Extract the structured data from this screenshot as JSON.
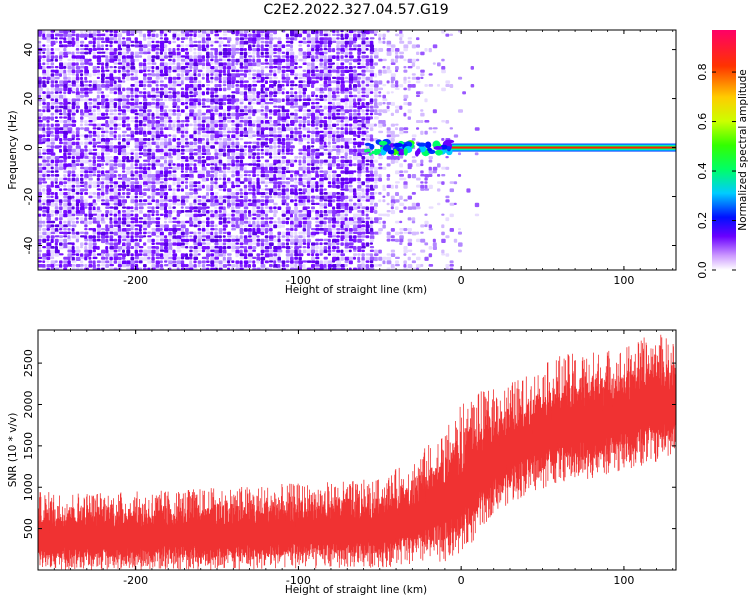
{
  "page": {
    "title": "C2E2.2022.327.04.57.G19"
  },
  "chart_data": [
    {
      "type": "heatmap",
      "xlabel": "Height of straight line (km)",
      "ylabel": "Frequency (Hz)",
      "xlim": [
        -260,
        132
      ],
      "ylim": [
        -50,
        48
      ],
      "xticks": [
        -200,
        -100,
        0,
        100
      ],
      "xtick_labels": [
        "-200",
        "-100",
        "0",
        "100"
      ],
      "yticks": [
        40,
        20,
        0,
        -20,
        -40
      ],
      "ytick_labels": [
        "40",
        "20",
        "0",
        "-20",
        "-40"
      ],
      "colorbar": {
        "label": "Normalized spectral amplitude",
        "range": [
          0,
          0.97
        ],
        "ticks": [
          0.0,
          0.2,
          0.4,
          0.6,
          0.8
        ],
        "tick_labels": [
          "0.0",
          "0.2",
          "0.4",
          "0.6",
          "0.8"
        ],
        "colormap": "rainbow-white-to-violet-to-red"
      },
      "features": {
        "noise_region_x": [
          -260,
          -55
        ],
        "fading_noise_x": [
          -55,
          5
        ],
        "signal_line_frequency": 0,
        "signal_line_x": [
          -60,
          132
        ],
        "signal_amplitude": 0.8
      },
      "grid": false
    },
    {
      "type": "line",
      "xlabel": "Height of straight line (km)",
      "ylabel": "SNR (10 * v/v)",
      "xlim": [
        -260,
        132
      ],
      "ylim": [
        0,
        2900
      ],
      "xticks": [
        -200,
        -100,
        0,
        100
      ],
      "xtick_labels": [
        "-200",
        "-100",
        "0",
        "100"
      ],
      "yticks": [
        500,
        1000,
        1500,
        2000,
        2500
      ],
      "ytick_labels": [
        "500",
        "1000",
        "1500",
        "2000",
        "2500"
      ],
      "line_color": "#f03232",
      "envelope": {
        "x": [
          -260,
          -200,
          -150,
          -100,
          -50,
          -30,
          -10,
          0,
          10,
          20,
          40,
          60,
          80,
          100,
          120,
          132
        ],
        "lower": [
          0,
          0,
          0,
          10,
          30,
          50,
          100,
          150,
          400,
          700,
          900,
          1050,
          1100,
          1200,
          1300,
          1400
        ],
        "upper": [
          950,
          950,
          1000,
          1050,
          1100,
          1350,
          1700,
          2000,
          2150,
          2200,
          2350,
          2600,
          2650,
          2700,
          2880,
          2750
        ]
      },
      "grid": false
    }
  ]
}
